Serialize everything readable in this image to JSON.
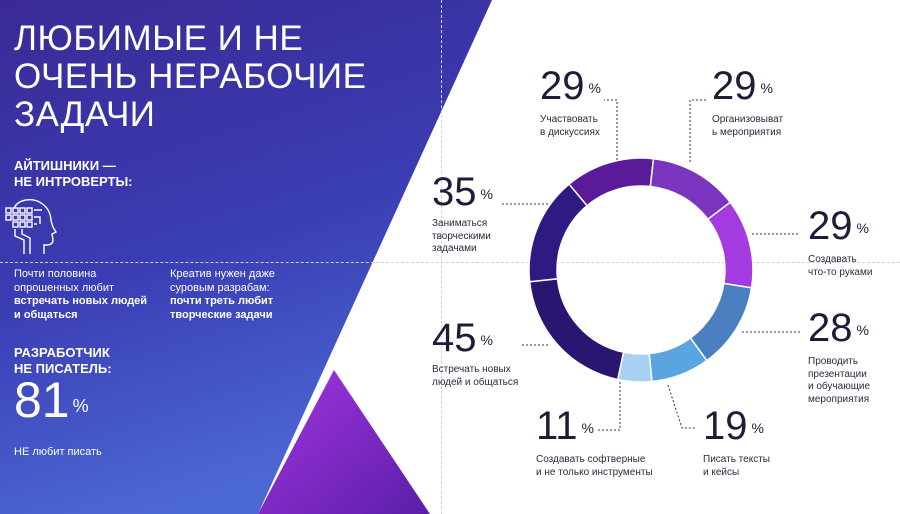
{
  "header": {
    "title": "ЛЮБИМЫЕ И НЕ\nОЧЕНЬ НЕРАБОЧИЕ\nЗАДАЧИ"
  },
  "left_panel": {
    "section1_title": "АЙТИШНИКИ —\nНЕ ИНТРОВЕРТЫ:",
    "note1_plain": "Почти половина опрошенных любит",
    "note1_bold": "встречать новых людей и общаться",
    "note2_plain": "Креатив нужен даже суровым разрабам:",
    "note2_bold": "почти треть любит творческие задачи",
    "section2_title": "РАЗРАБОТЧИК\nНЕ ПИСАТЕЛЬ:",
    "big_value": "81",
    "big_unit": "%",
    "big_caption": "НЕ любит писать"
  },
  "colors": {
    "panel_top": "#3b2a9a",
    "panel_bottom": "#4a5ed0",
    "accent_purple": "#8f2ad6",
    "text_dark": "#1d1d3a"
  },
  "icons": {
    "head": "head-circuit-icon"
  },
  "chart_data": {
    "type": "pie",
    "style": "donut",
    "unit": "%",
    "categories": [
      "Участвовать в дискуссиях",
      "Организовывать мероприятия",
      "Создавать что-то руками",
      "Проводить презентации и обучающие мероприятия",
      "Писать тексты и кейсы",
      "Создавать софтверные и не только инструменты",
      "Встречать новых людей и общаться",
      "Заниматься творческими задачами"
    ],
    "values": [
      29,
      29,
      29,
      28,
      19,
      11,
      45,
      35
    ],
    "colors": [
      "#5a1a9a",
      "#7a35c0",
      "#a43be0",
      "#4a7fc0",
      "#5aa5e0",
      "#a8d0f2",
      "#2a1670",
      "#2f1a82"
    ],
    "labels": [
      {
        "value": "29",
        "unit": "%",
        "text": "Участвовать\nв дискуссиях"
      },
      {
        "value": "29",
        "unit": "%",
        "text": "Организовыват\nь мероприятия"
      },
      {
        "value": "29",
        "unit": "%",
        "text": "Создавать\nчто-то руками"
      },
      {
        "value": "28",
        "unit": "%",
        "text": "Проводить\nпрезентации\nи обучающие\nмероприятия"
      },
      {
        "value": "19",
        "unit": "%",
        "text": "Писать тексты\nи кейсы"
      },
      {
        "value": "11",
        "unit": "%",
        "text": "Создавать софтверные\nи не только инструменты"
      },
      {
        "value": "45",
        "unit": "%",
        "text": "Встречать новых\nлюдей и общаться"
      },
      {
        "value": "35",
        "unit": "%",
        "text": "Заниматься\nтворческими\nзадачами"
      }
    ]
  }
}
